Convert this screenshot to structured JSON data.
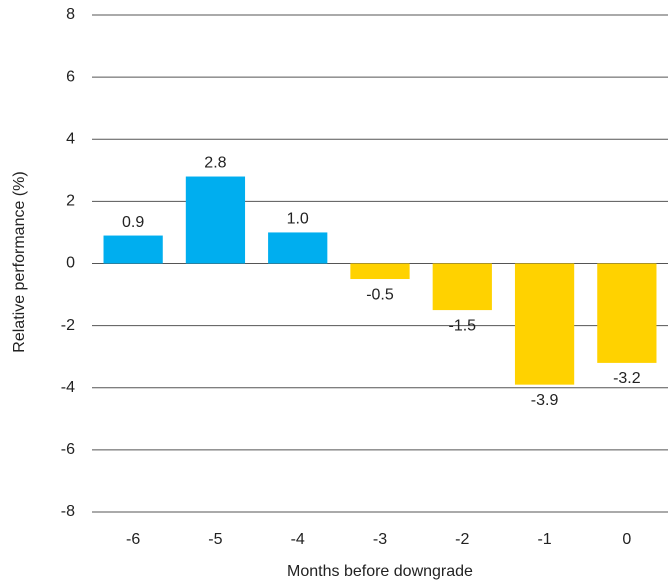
{
  "chart_data": {
    "type": "bar",
    "categories": [
      "-6",
      "-5",
      "-4",
      "-3",
      "-2",
      "-1",
      "0"
    ],
    "values": [
      0.9,
      2.8,
      1.0,
      -0.5,
      -1.5,
      -3.9,
      -3.2
    ],
    "value_labels": [
      "0.9",
      "2.8",
      "1.0",
      "-0.5",
      "-1.5",
      "-3.9",
      "-3.2"
    ],
    "colors": [
      "#00aeef",
      "#00aeef",
      "#00aeef",
      "#ffd200",
      "#ffd200",
      "#ffd200",
      "#ffd200"
    ],
    "x_label": "Months before downgrade",
    "y_label": "Relative performance (%)",
    "ylim": [
      -8,
      8
    ],
    "yticks": [
      -8,
      -6,
      -4,
      -2,
      0,
      2,
      4,
      6,
      8
    ],
    "grid": true
  }
}
